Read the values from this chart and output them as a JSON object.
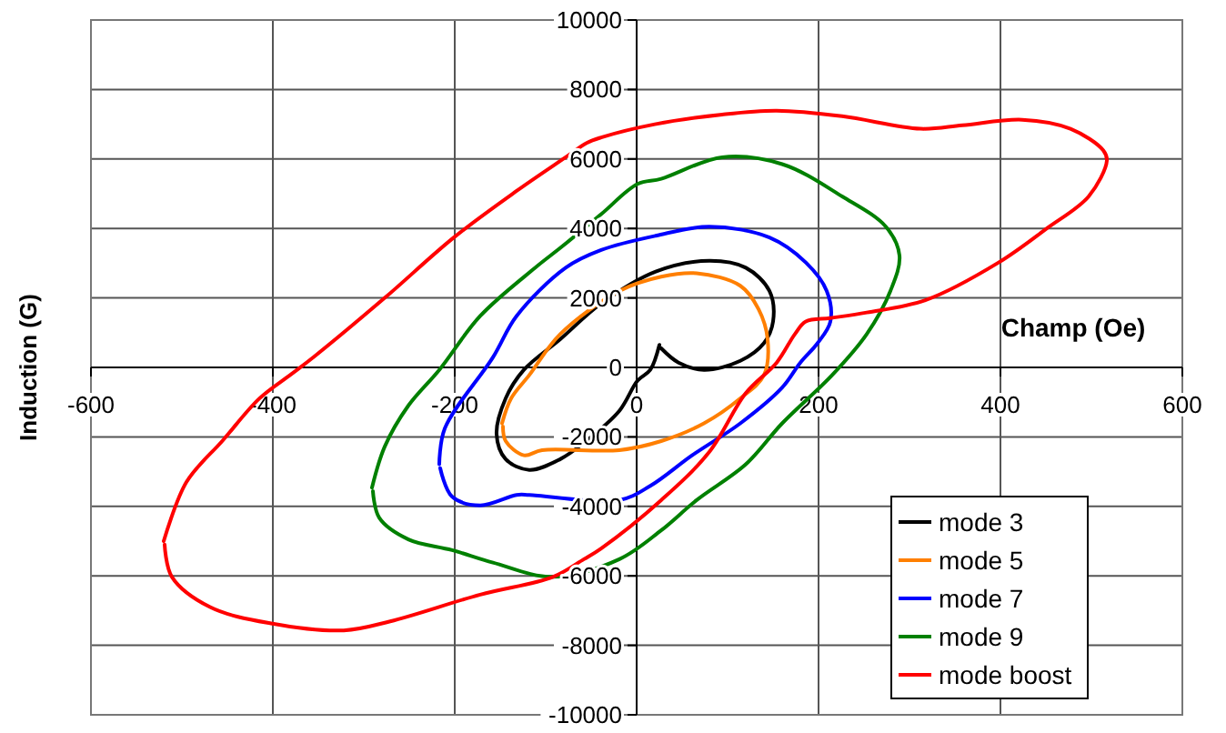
{
  "chart_data": {
    "type": "line",
    "xlabel": "Champ (Oe)",
    "ylabel": "Induction (G)",
    "xlim": [
      -600,
      600
    ],
    "ylim": [
      -10000,
      10000
    ],
    "xticks": [
      -600,
      -400,
      -200,
      0,
      200,
      400,
      600
    ],
    "yticks": [
      -10000,
      -8000,
      -6000,
      -4000,
      -2000,
      0,
      2000,
      4000,
      6000,
      8000,
      10000
    ],
    "grid": true,
    "legend": "bottom right",
    "marker": "none",
    "line_style": "solid",
    "series": [
      {
        "name": "mode 3",
        "color": "#000000",
        "x": [
          25,
          15,
          1,
          -19,
          -58,
          -84,
          -118,
          -144,
          -154,
          -144,
          -124,
          -84,
          -39,
          21,
          80,
          120,
          146,
          150,
          140,
          114,
          74,
          46,
          27
        ],
        "values": [
          650,
          -70,
          -380,
          -1250,
          -2170,
          -2640,
          -2950,
          -2640,
          -1920,
          -890,
          -70,
          810,
          1840,
          2760,
          3070,
          2870,
          2200,
          1320,
          700,
          190,
          -70,
          140,
          550
        ]
      },
      {
        "name": "mode 5",
        "color": "#ff7f00",
        "x": [
          -148,
          -138,
          -118,
          -84,
          -19,
          27,
          66,
          114,
          134,
          144,
          140,
          114,
          74,
          27,
          -19,
          -104,
          -124,
          -144,
          -147
        ],
        "values": [
          -1610,
          -890,
          -220,
          960,
          2200,
          2610,
          2710,
          2350,
          1680,
          810,
          -220,
          -890,
          -1610,
          -2120,
          -2380,
          -2380,
          -2530,
          -2120,
          -1700
        ]
      },
      {
        "name": "mode 7",
        "color": "#0000ff",
        "x": [
          -217,
          -211,
          -158,
          -132,
          -78,
          -39,
          21,
          80,
          146,
          186,
          209,
          213,
          199,
          180,
          160,
          114,
          61,
          15,
          -19,
          -118,
          -132,
          -172,
          -203,
          -216
        ],
        "values": [
          -2790,
          -1760,
          290,
          1480,
          2870,
          3380,
          3790,
          4050,
          3740,
          3020,
          2200,
          1320,
          700,
          140,
          -580,
          -1610,
          -2530,
          -3410,
          -3820,
          -3670,
          -3670,
          -3970,
          -3720,
          -2900
        ]
      },
      {
        "name": "mode 9",
        "color": "#008000",
        "x": [
          -291,
          -277,
          -251,
          -217,
          -172,
          -112,
          -82,
          -39,
          1,
          27,
          94,
          160,
          226,
          274,
          289,
          279,
          253,
          215,
          160,
          120,
          66,
          27,
          -19,
          -92,
          -158,
          -203,
          -251,
          -283,
          -290
        ],
        "values": [
          -3460,
          -2280,
          -1100,
          -70,
          1480,
          2860,
          3480,
          4410,
          5280,
          5430,
          6050,
          5850,
          4920,
          4050,
          3220,
          2200,
          960,
          -220,
          -1610,
          -2790,
          -3820,
          -4690,
          -5520,
          -6030,
          -5620,
          -5260,
          -4950,
          -4330,
          -3560
        ]
      },
      {
        "name": "mode boost",
        "color": "#ff0000",
        "x": [
          -520,
          -495,
          -455,
          -415,
          -380,
          -355,
          -277,
          -201,
          -132,
          -78,
          -55,
          -39,
          20,
          94,
          154,
          226,
          312,
          358,
          424,
          477,
          513,
          517,
          497,
          451,
          398,
          318,
          253,
          213,
          186,
          174,
          154,
          120,
          80,
          27,
          -39,
          -58,
          -92,
          -172,
          -271,
          -322,
          -402,
          -469,
          -511,
          -519
        ],
        "values": [
          -5000,
          -3300,
          -2100,
          -900,
          -200,
          300,
          2000,
          3740,
          5080,
          6050,
          6460,
          6620,
          7000,
          7280,
          7390,
          7230,
          6870,
          6970,
          7130,
          6870,
          6250,
          5950,
          4920,
          4000,
          3020,
          1940,
          1580,
          1420,
          1320,
          960,
          140,
          -740,
          -2430,
          -3820,
          -5210,
          -5520,
          -6030,
          -6540,
          -7310,
          -7570,
          -7370,
          -6900,
          -6030,
          -5100
        ]
      }
    ]
  }
}
